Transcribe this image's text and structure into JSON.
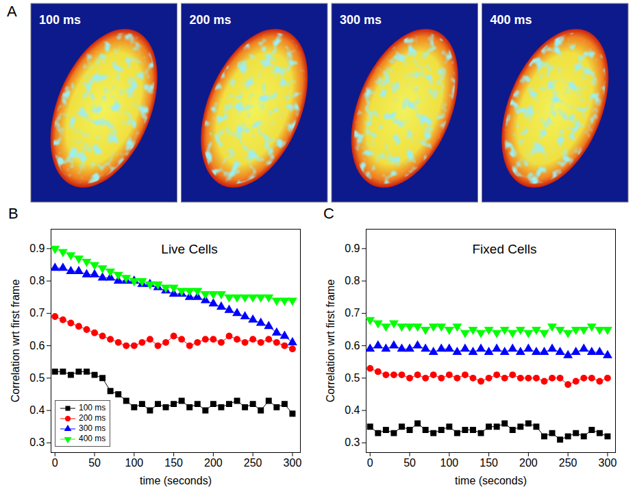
{
  "panel_a": {
    "label": "A",
    "frames": [
      "100 ms",
      "200 ms",
      "300 ms",
      "400 ms"
    ]
  },
  "chart_data": [
    {
      "type": "scatter",
      "panel_label": "B",
      "title": "Live Cells",
      "x_label": "time (seconds)",
      "y_label": "Correlation wrt first frame",
      "xlim": [
        -5,
        310
      ],
      "xticks": [
        0,
        50,
        100,
        150,
        200,
        250,
        300
      ],
      "ylim": [
        0.27,
        0.96
      ],
      "yticks": [
        0.3,
        0.4,
        0.5,
        0.6,
        0.7,
        0.8,
        0.9
      ],
      "legend": "lower left",
      "x": [
        0,
        10,
        20,
        30,
        40,
        50,
        60,
        70,
        80,
        90,
        100,
        110,
        120,
        130,
        140,
        150,
        160,
        170,
        180,
        190,
        200,
        210,
        220,
        230,
        240,
        250,
        260,
        270,
        280,
        290,
        300
      ],
      "series": [
        {
          "name": "100 ms",
          "color": "#000000",
          "marker": "square",
          "line_style": "solid",
          "values": [
            0.52,
            0.52,
            0.51,
            0.52,
            0.52,
            0.51,
            0.5,
            0.46,
            0.45,
            0.43,
            0.41,
            0.42,
            0.4,
            0.42,
            0.41,
            0.42,
            0.43,
            0.41,
            0.42,
            0.4,
            0.42,
            0.41,
            0.42,
            0.43,
            0.41,
            0.42,
            0.4,
            0.43,
            0.41,
            0.42,
            0.39
          ]
        },
        {
          "name": "200 ms",
          "color": "#ff0000",
          "marker": "circle",
          "line_style": "solid",
          "values": [
            0.69,
            0.68,
            0.67,
            0.66,
            0.65,
            0.64,
            0.63,
            0.62,
            0.61,
            0.6,
            0.6,
            0.61,
            0.62,
            0.6,
            0.61,
            0.63,
            0.62,
            0.6,
            0.61,
            0.62,
            0.62,
            0.61,
            0.63,
            0.62,
            0.61,
            0.62,
            0.61,
            0.62,
            0.61,
            0.6,
            0.59
          ]
        },
        {
          "name": "300 ms",
          "color": "#0000ff",
          "marker": "triangle",
          "line_style": "solid",
          "values": [
            0.84,
            0.84,
            0.83,
            0.83,
            0.82,
            0.82,
            0.81,
            0.81,
            0.8,
            0.8,
            0.8,
            0.79,
            0.79,
            0.78,
            0.77,
            0.76,
            0.76,
            0.75,
            0.75,
            0.74,
            0.73,
            0.72,
            0.71,
            0.7,
            0.69,
            0.68,
            0.67,
            0.66,
            0.64,
            0.63,
            0.61
          ]
        },
        {
          "name": "400 ms",
          "color": "#00ff00",
          "marker": "triangle-down",
          "line_style": "solid",
          "values": [
            0.9,
            0.89,
            0.88,
            0.87,
            0.86,
            0.85,
            0.84,
            0.83,
            0.82,
            0.81,
            0.8,
            0.8,
            0.79,
            0.79,
            0.78,
            0.78,
            0.77,
            0.77,
            0.77,
            0.76,
            0.76,
            0.76,
            0.75,
            0.75,
            0.75,
            0.75,
            0.75,
            0.75,
            0.74,
            0.74,
            0.74
          ]
        }
      ]
    },
    {
      "type": "scatter",
      "panel_label": "C",
      "title": "Fixed Cells",
      "x_label": "time (seconds)",
      "y_label": "Correlation wrt first frame",
      "xlim": [
        -5,
        310
      ],
      "xticks": [
        0,
        50,
        100,
        150,
        200,
        250,
        300
      ],
      "ylim": [
        0.27,
        0.96
      ],
      "yticks": [
        0.3,
        0.4,
        0.5,
        0.6,
        0.7,
        0.8,
        0.9
      ],
      "x": [
        0,
        10,
        20,
        30,
        40,
        50,
        60,
        70,
        80,
        90,
        100,
        110,
        120,
        130,
        140,
        150,
        160,
        170,
        180,
        190,
        200,
        210,
        220,
        230,
        240,
        250,
        260,
        270,
        280,
        290,
        300
      ],
      "series": [
        {
          "name": "100 ms",
          "color": "#000000",
          "marker": "square",
          "line_style": "solid",
          "values": [
            0.35,
            0.33,
            0.34,
            0.33,
            0.35,
            0.34,
            0.36,
            0.34,
            0.33,
            0.34,
            0.35,
            0.33,
            0.34,
            0.34,
            0.33,
            0.35,
            0.35,
            0.36,
            0.34,
            0.35,
            0.36,
            0.35,
            0.32,
            0.33,
            0.31,
            0.32,
            0.33,
            0.32,
            0.34,
            0.33,
            0.32
          ]
        },
        {
          "name": "200 ms",
          "color": "#ff0000",
          "marker": "circle",
          "line_style": "solid",
          "values": [
            0.53,
            0.52,
            0.51,
            0.51,
            0.51,
            0.5,
            0.51,
            0.5,
            0.51,
            0.5,
            0.51,
            0.5,
            0.51,
            0.5,
            0.49,
            0.5,
            0.51,
            0.5,
            0.51,
            0.5,
            0.5,
            0.5,
            0.49,
            0.5,
            0.5,
            0.48,
            0.49,
            0.5,
            0.5,
            0.49,
            0.5
          ]
        },
        {
          "name": "300 ms",
          "color": "#0000ff",
          "marker": "triangle",
          "line_style": "solid",
          "values": [
            0.59,
            0.6,
            0.59,
            0.6,
            0.59,
            0.59,
            0.6,
            0.59,
            0.58,
            0.59,
            0.59,
            0.58,
            0.59,
            0.58,
            0.59,
            0.58,
            0.59,
            0.58,
            0.59,
            0.58,
            0.59,
            0.58,
            0.58,
            0.59,
            0.58,
            0.57,
            0.58,
            0.59,
            0.58,
            0.58,
            0.57
          ]
        },
        {
          "name": "400 ms",
          "color": "#00ff00",
          "marker": "triangle-down",
          "line_style": "solid",
          "values": [
            0.68,
            0.67,
            0.66,
            0.67,
            0.66,
            0.66,
            0.66,
            0.65,
            0.66,
            0.66,
            0.65,
            0.66,
            0.64,
            0.65,
            0.64,
            0.65,
            0.64,
            0.65,
            0.64,
            0.65,
            0.64,
            0.65,
            0.64,
            0.66,
            0.65,
            0.64,
            0.65,
            0.65,
            0.66,
            0.65,
            0.65
          ]
        }
      ]
    }
  ]
}
